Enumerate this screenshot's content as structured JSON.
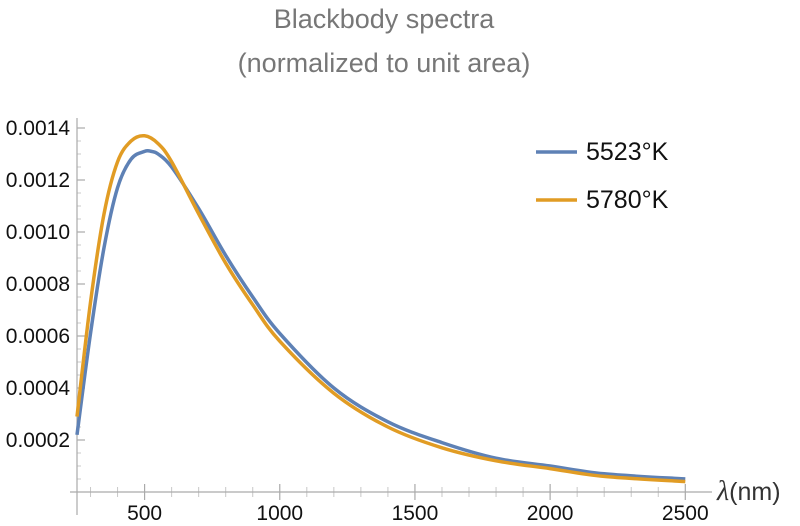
{
  "chart_data": {
    "type": "line",
    "title": "Blackbody spectra",
    "subtitle": "(normalized to unit area)",
    "xlabel_symbol": "λ",
    "xlabel_unit": "(nm)",
    "ylabel": "",
    "xlim": [
      250,
      2510
    ],
    "ylim": [
      0,
      0.0014
    ],
    "x_ticks": [
      500,
      1000,
      1500,
      2000,
      2500
    ],
    "x_tick_labels": [
      "500",
      "1000",
      "1500",
      "2000",
      "2500"
    ],
    "y_ticks": [
      0.0002,
      0.0004,
      0.0006,
      0.0008,
      0.001,
      0.0012,
      0.0014
    ],
    "y_tick_labels": [
      "0.0002",
      "0.0004",
      "0.0006",
      "0.0008",
      "0.0010",
      "0.0012",
      "0.0014"
    ],
    "legend_position": "top-right",
    "series": [
      {
        "name": "5523°K",
        "color": "#5e81b5",
        "x": [
          250,
          300,
          350,
          400,
          450,
          500,
          525,
          550,
          600,
          700,
          800,
          900,
          1000,
          1200,
          1400,
          1600,
          1800,
          2000,
          2200,
          2500
        ],
        "values": [
          0.00022,
          0.00061,
          0.00094,
          0.00117,
          0.00128,
          0.00131,
          0.00131,
          0.0013,
          0.00125,
          0.00109,
          0.00091,
          0.00075,
          0.00061,
          0.0004,
          0.00027,
          0.00019,
          0.00013,
          0.0001,
          7e-05,
          5e-05
        ]
      },
      {
        "name": "5780°K",
        "color": "#e19c24",
        "x": [
          250,
          300,
          350,
          400,
          450,
          500,
          550,
          600,
          700,
          800,
          900,
          1000,
          1200,
          1400,
          1600,
          1800,
          2000,
          2200,
          2500
        ],
        "values": [
          0.00029,
          0.00073,
          0.00107,
          0.00127,
          0.00135,
          0.00137,
          0.00134,
          0.00127,
          0.00107,
          0.00088,
          0.00072,
          0.00058,
          0.00038,
          0.00025,
          0.00017,
          0.00012,
          9e-05,
          6e-05,
          4e-05
        ]
      }
    ]
  }
}
